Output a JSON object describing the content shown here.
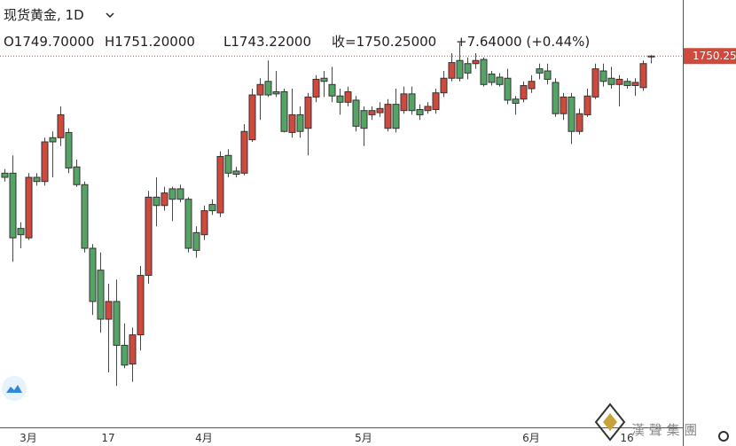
{
  "chart_data": {
    "type": "candlestick",
    "title": "现货黄金, 1D",
    "header_values": [
      "O1749.70000",
      "H1751.20000",
      "L1743.22000",
      "收=1750.25000",
      "+7.64000 (+0.44%)"
    ],
    "watermark": "漢 聲 集 團",
    "up_color": "#cf4a3c",
    "down_color": "#55a466",
    "ylim": [
      1394.3,
      1804
    ],
    "categories": [
      null,
      null,
      null,
      "3月",
      null,
      null,
      null,
      null,
      null,
      null,
      null,
      null,
      null,
      "17",
      null,
      null,
      null,
      null,
      null,
      null,
      null,
      null,
      null,
      null,
      null,
      "4月",
      null,
      null,
      null,
      null,
      null,
      null,
      null,
      null,
      null,
      null,
      null,
      null,
      null,
      null,
      null,
      null,
      null,
      null,
      null,
      "5月",
      null,
      null,
      null,
      null,
      null,
      null,
      null,
      null,
      null,
      null,
      null,
      null,
      null,
      null,
      null,
      null,
      null,
      null,
      null,
      null,
      "6月",
      null,
      null,
      null,
      null,
      null,
      null,
      null,
      null,
      null,
      null,
      null,
      "16",
      null,
      null,
      null
    ],
    "open": [
      1638,
      1638,
      1585,
      1576,
      1634,
      1630,
      1672,
      1672,
      1677,
      1644,
      1627,
      1566,
      1545,
      1498,
      1515,
      1473,
      1455,
      1483,
      1540,
      1615,
      1607,
      1623,
      1623,
      1613,
      1581,
      1579,
      1608,
      1600,
      1655,
      1640,
      1638,
      1670,
      1713,
      1726,
      1716,
      1716,
      1677,
      1694,
      1681,
      1711,
      1729,
      1723,
      1712,
      1706,
      1708,
      1698,
      1694,
      1696,
      1681,
      1704,
      1698,
      1714,
      1699,
      1698,
      1699,
      1715,
      1729,
      1746,
      1743,
      1743,
      1747,
      1733,
      1730,
      1729,
      1709,
      1709,
      1719,
      1738,
      1736,
      1725,
      1695,
      1711,
      1678,
      1694,
      1711,
      1736,
      1729,
      1723,
      1726,
      1722,
      1720,
      1749.7
    ],
    "high": [
      1642,
      1655,
      1591,
      1638,
      1638,
      1672,
      1678,
      1702,
      1681,
      1651,
      1630,
      1570,
      1562,
      1532,
      1536,
      1494,
      1490,
      1549,
      1621,
      1634,
      1625,
      1625,
      1627,
      1615,
      1587,
      1607,
      1613,
      1659,
      1661,
      1644,
      1685,
      1719,
      1729,
      1746,
      1736,
      1719,
      1719,
      1702,
      1715,
      1732,
      1736,
      1740,
      1719,
      1721,
      1712,
      1702,
      1702,
      1706,
      1709,
      1719,
      1721,
      1721,
      1704,
      1706,
      1719,
      1736,
      1753,
      1763,
      1749,
      1753,
      1749,
      1736,
      1734,
      1738,
      1712,
      1726,
      1732,
      1743,
      1743,
      1729,
      1715,
      1715,
      1700,
      1719,
      1743,
      1743,
      1740,
      1732,
      1729,
      1729,
      1746,
      1751.2
    ],
    "low": [
      1630,
      1553,
      1566,
      1574,
      1626,
      1626,
      1634,
      1664,
      1638,
      1625,
      1562,
      1502,
      1485,
      1447,
      1434,
      1451,
      1438,
      1468,
      1532,
      1587,
      1602,
      1592,
      1610,
      1562,
      1557,
      1574,
      1598,
      1596,
      1634,
      1634,
      1636,
      1668,
      1689,
      1711,
      1711,
      1677,
      1672,
      1672,
      1655,
      1706,
      1711,
      1706,
      1694,
      1702,
      1678,
      1664,
      1689,
      1692,
      1678,
      1677,
      1695,
      1694,
      1689,
      1695,
      1695,
      1711,
      1726,
      1726,
      1728,
      1738,
      1721,
      1722,
      1721,
      1704,
      1694,
      1706,
      1715,
      1728,
      1723,
      1692,
      1689,
      1666,
      1675,
      1692,
      1709,
      1721,
      1719,
      1702,
      1719,
      1712,
      1717,
      1743.22
    ],
    "close": [
      1634,
      1576,
      1579,
      1634,
      1630,
      1668,
      1668,
      1694,
      1643,
      1627,
      1566,
      1515,
      1498,
      1515,
      1473,
      1454,
      1483,
      1540,
      1615,
      1607,
      1619,
      1613,
      1613,
      1566,
      1564,
      1602,
      1602,
      1654,
      1638,
      1637,
      1678,
      1713,
      1723,
      1713,
      1714,
      1678,
      1694,
      1678,
      1711,
      1728,
      1726,
      1712,
      1706,
      1716,
      1683,
      1681,
      1698,
      1700,
      1704,
      1681,
      1714,
      1698,
      1694,
      1702,
      1715,
      1729,
      1744,
      1729,
      1734,
      1746,
      1723,
      1725,
      1723,
      1708,
      1705,
      1722,
      1726,
      1734,
      1728,
      1695,
      1711,
      1678,
      1695,
      1712,
      1738,
      1726,
      1723,
      1728,
      1722,
      1725,
      1743,
      1750.25
    ]
  }
}
